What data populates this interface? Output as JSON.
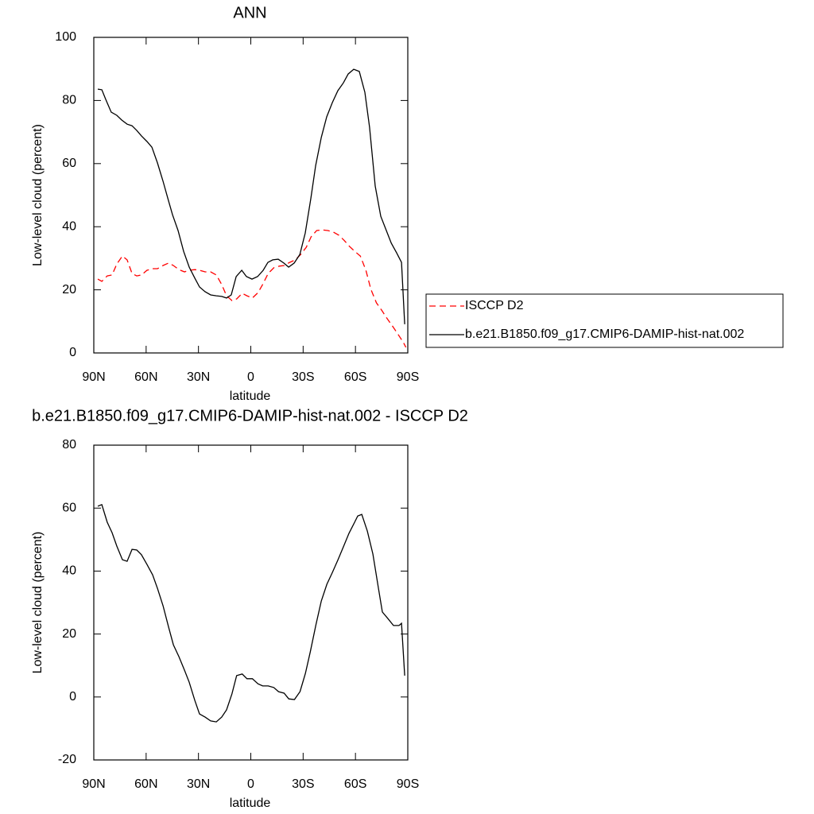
{
  "chart_data": [
    {
      "type": "line",
      "title": "ANN",
      "xlabel": "latitude",
      "ylabel": "Low-level cloud (percent)",
      "xlim": [
        90,
        -90
      ],
      "xticks": [
        {
          "value": 90,
          "label": "90N"
        },
        {
          "value": 60,
          "label": "60N"
        },
        {
          "value": 30,
          "label": "30N"
        },
        0,
        {
          "value": -30,
          "label": "30S"
        },
        {
          "value": -60,
          "label": "60S"
        },
        {
          "value": -90,
          "label": "90S"
        }
      ],
      "ylim": [
        0,
        100
      ],
      "yticks": [
        0,
        20,
        40,
        60,
        80,
        100
      ],
      "legend": "right",
      "series": [
        {
          "name": "ISCCP D2",
          "color": "#ff0000",
          "line_style": "dashed",
          "x": [
            87.7,
            85.4,
            82.3,
            79.5,
            76.8,
            73.6,
            70.9,
            68.1,
            65.4,
            62.7,
            59.5,
            56.3,
            53.5,
            50.3,
            47.1,
            44.4,
            41.2,
            38.0,
            35.3,
            32.1,
            29.4,
            26.2,
            23.0,
            19.8,
            16.7,
            13.9,
            10.8,
            8.1,
            4.9,
            2.2,
            -0.9,
            -4.1,
            -6.8,
            -10.0,
            -13.2,
            -16.3,
            -19.1,
            -22.3,
            -25.5,
            -28.6,
            -31.8,
            -34.6,
            -37.8,
            -40.9,
            -44.1,
            -47.3,
            -50.5,
            -53.3,
            -56.5,
            -59.6,
            -62.8,
            -66.0,
            -68.8,
            -72.0,
            -75.2,
            -77.9,
            -81.1,
            -84.3,
            -87.5,
            -88.9
          ],
          "values": [
            23.4,
            22.7,
            24.4,
            24.7,
            28.2,
            30.7,
            29.5,
            25.2,
            24.4,
            24.7,
            26.2,
            26.7,
            26.7,
            27.7,
            28.5,
            27.7,
            26.4,
            25.7,
            26.2,
            26.4,
            26.2,
            25.7,
            25.7,
            24.7,
            21.7,
            18.1,
            16.6,
            17.1,
            18.9,
            18.1,
            17.4,
            19.1,
            21.7,
            25.2,
            27.0,
            27.5,
            27.7,
            28.7,
            29.5,
            31.2,
            33.5,
            36.8,
            38.8,
            39.0,
            38.8,
            38.3,
            37.3,
            35.8,
            33.8,
            32.2,
            30.7,
            26.2,
            20.2,
            15.9,
            13.4,
            11.1,
            8.6,
            6.0,
            3.3,
            1.8
          ]
        },
        {
          "name": "b.e21.B1850.f09_g17.CMIP6-DAMIP-hist-nat.002",
          "color": "#000000",
          "line_style": "solid",
          "x": [
            87.7,
            85.4,
            83.2,
            80.0,
            76.8,
            74.0,
            70.9,
            68.1,
            65.4,
            62.7,
            59.5,
            56.7,
            53.5,
            50.3,
            47.6,
            44.9,
            41.7,
            38.5,
            35.3,
            32.1,
            29.4,
            26.2,
            23.0,
            19.8,
            16.7,
            13.9,
            11.2,
            8.4,
            5.2,
            2.5,
            -0.7,
            -3.9,
            -7.1,
            -9.8,
            -12.6,
            -15.7,
            -18.9,
            -21.7,
            -24.9,
            -28.1,
            -31.2,
            -34.4,
            -37.2,
            -40.4,
            -43.5,
            -46.7,
            -49.9,
            -53.1,
            -55.8,
            -59.0,
            -62.2,
            -65.4,
            -68.1,
            -71.3,
            -74.5,
            -77.7,
            -80.5,
            -83.6,
            -86.4,
            -88.2
          ],
          "values": [
            83.6,
            83.4,
            80.4,
            76.3,
            75.3,
            73.8,
            72.5,
            72.0,
            70.5,
            68.8,
            67.0,
            65.2,
            60.2,
            54.4,
            49.1,
            43.8,
            38.8,
            32.2,
            27.2,
            23.7,
            20.9,
            19.4,
            18.4,
            18.1,
            17.9,
            17.4,
            18.4,
            24.2,
            26.2,
            24.2,
            23.4,
            24.2,
            26.2,
            28.7,
            29.5,
            29.7,
            28.5,
            27.2,
            28.5,
            31.2,
            38.0,
            48.9,
            59.4,
            68.3,
            74.8,
            79.3,
            83.1,
            85.6,
            88.4,
            89.9,
            89.2,
            82.6,
            71.5,
            52.9,
            43.3,
            38.8,
            34.8,
            31.7,
            28.7,
            9.1
          ]
        }
      ]
    },
    {
      "type": "line",
      "title": "b.e21.B1850.f09_g17.CMIP6-DAMIP-hist-nat.002 - ISCCP D2",
      "xlabel": "latitude",
      "ylabel": "Low-level cloud (percent)",
      "xlim": [
        90,
        -90
      ],
      "xticks": [
        {
          "value": 90,
          "label": "90N"
        },
        {
          "value": 60,
          "label": "60N"
        },
        {
          "value": 30,
          "label": "30N"
        },
        0,
        {
          "value": -30,
          "label": "30S"
        },
        {
          "value": -60,
          "label": "60S"
        },
        {
          "value": -90,
          "label": "90S"
        }
      ],
      "ylim": [
        -20,
        80
      ],
      "yticks": [
        -20,
        0,
        20,
        40,
        60,
        80
      ],
      "series": [
        {
          "color": "#000000",
          "line_style": "solid",
          "x": [
            87.7,
            85.4,
            82.3,
            79.5,
            76.8,
            73.6,
            70.9,
            68.1,
            65.4,
            62.7,
            59.5,
            56.3,
            53.5,
            50.3,
            47.1,
            44.4,
            41.2,
            38.0,
            35.3,
            32.1,
            29.4,
            26.2,
            23.0,
            19.8,
            16.7,
            13.9,
            10.8,
            8.1,
            4.9,
            2.2,
            -0.9,
            -4.1,
            -6.8,
            -10.0,
            -13.2,
            -15.9,
            -19.1,
            -21.8,
            -25.0,
            -28.2,
            -31.3,
            -34.1,
            -37.3,
            -40.4,
            -43.6,
            -46.8,
            -50.0,
            -53.1,
            -56.3,
            -59.5,
            -61.3,
            -63.6,
            -66.8,
            -70.0,
            -73.2,
            -75.4,
            -78.6,
            -81.8,
            -85.0,
            -86.4,
            -88.2
          ],
          "values": [
            60.6,
            61.1,
            55.5,
            52.2,
            47.9,
            43.6,
            43.1,
            46.9,
            46.7,
            45.2,
            42.1,
            38.8,
            34.5,
            29.0,
            22.2,
            16.6,
            12.8,
            8.5,
            4.7,
            -1.1,
            -5.4,
            -6.4,
            -7.6,
            -7.9,
            -6.4,
            -4.1,
            1.0,
            6.8,
            7.3,
            5.8,
            5.8,
            4.2,
            3.5,
            3.5,
            3.0,
            1.7,
            1.2,
            -0.6,
            -0.8,
            1.7,
            7.5,
            14.3,
            22.9,
            30.5,
            35.8,
            39.6,
            43.6,
            47.7,
            52.0,
            55.5,
            57.5,
            58.0,
            52.7,
            45.4,
            34.5,
            27.0,
            24.9,
            22.7,
            22.7,
            23.4,
            6.8
          ]
        }
      ]
    }
  ]
}
